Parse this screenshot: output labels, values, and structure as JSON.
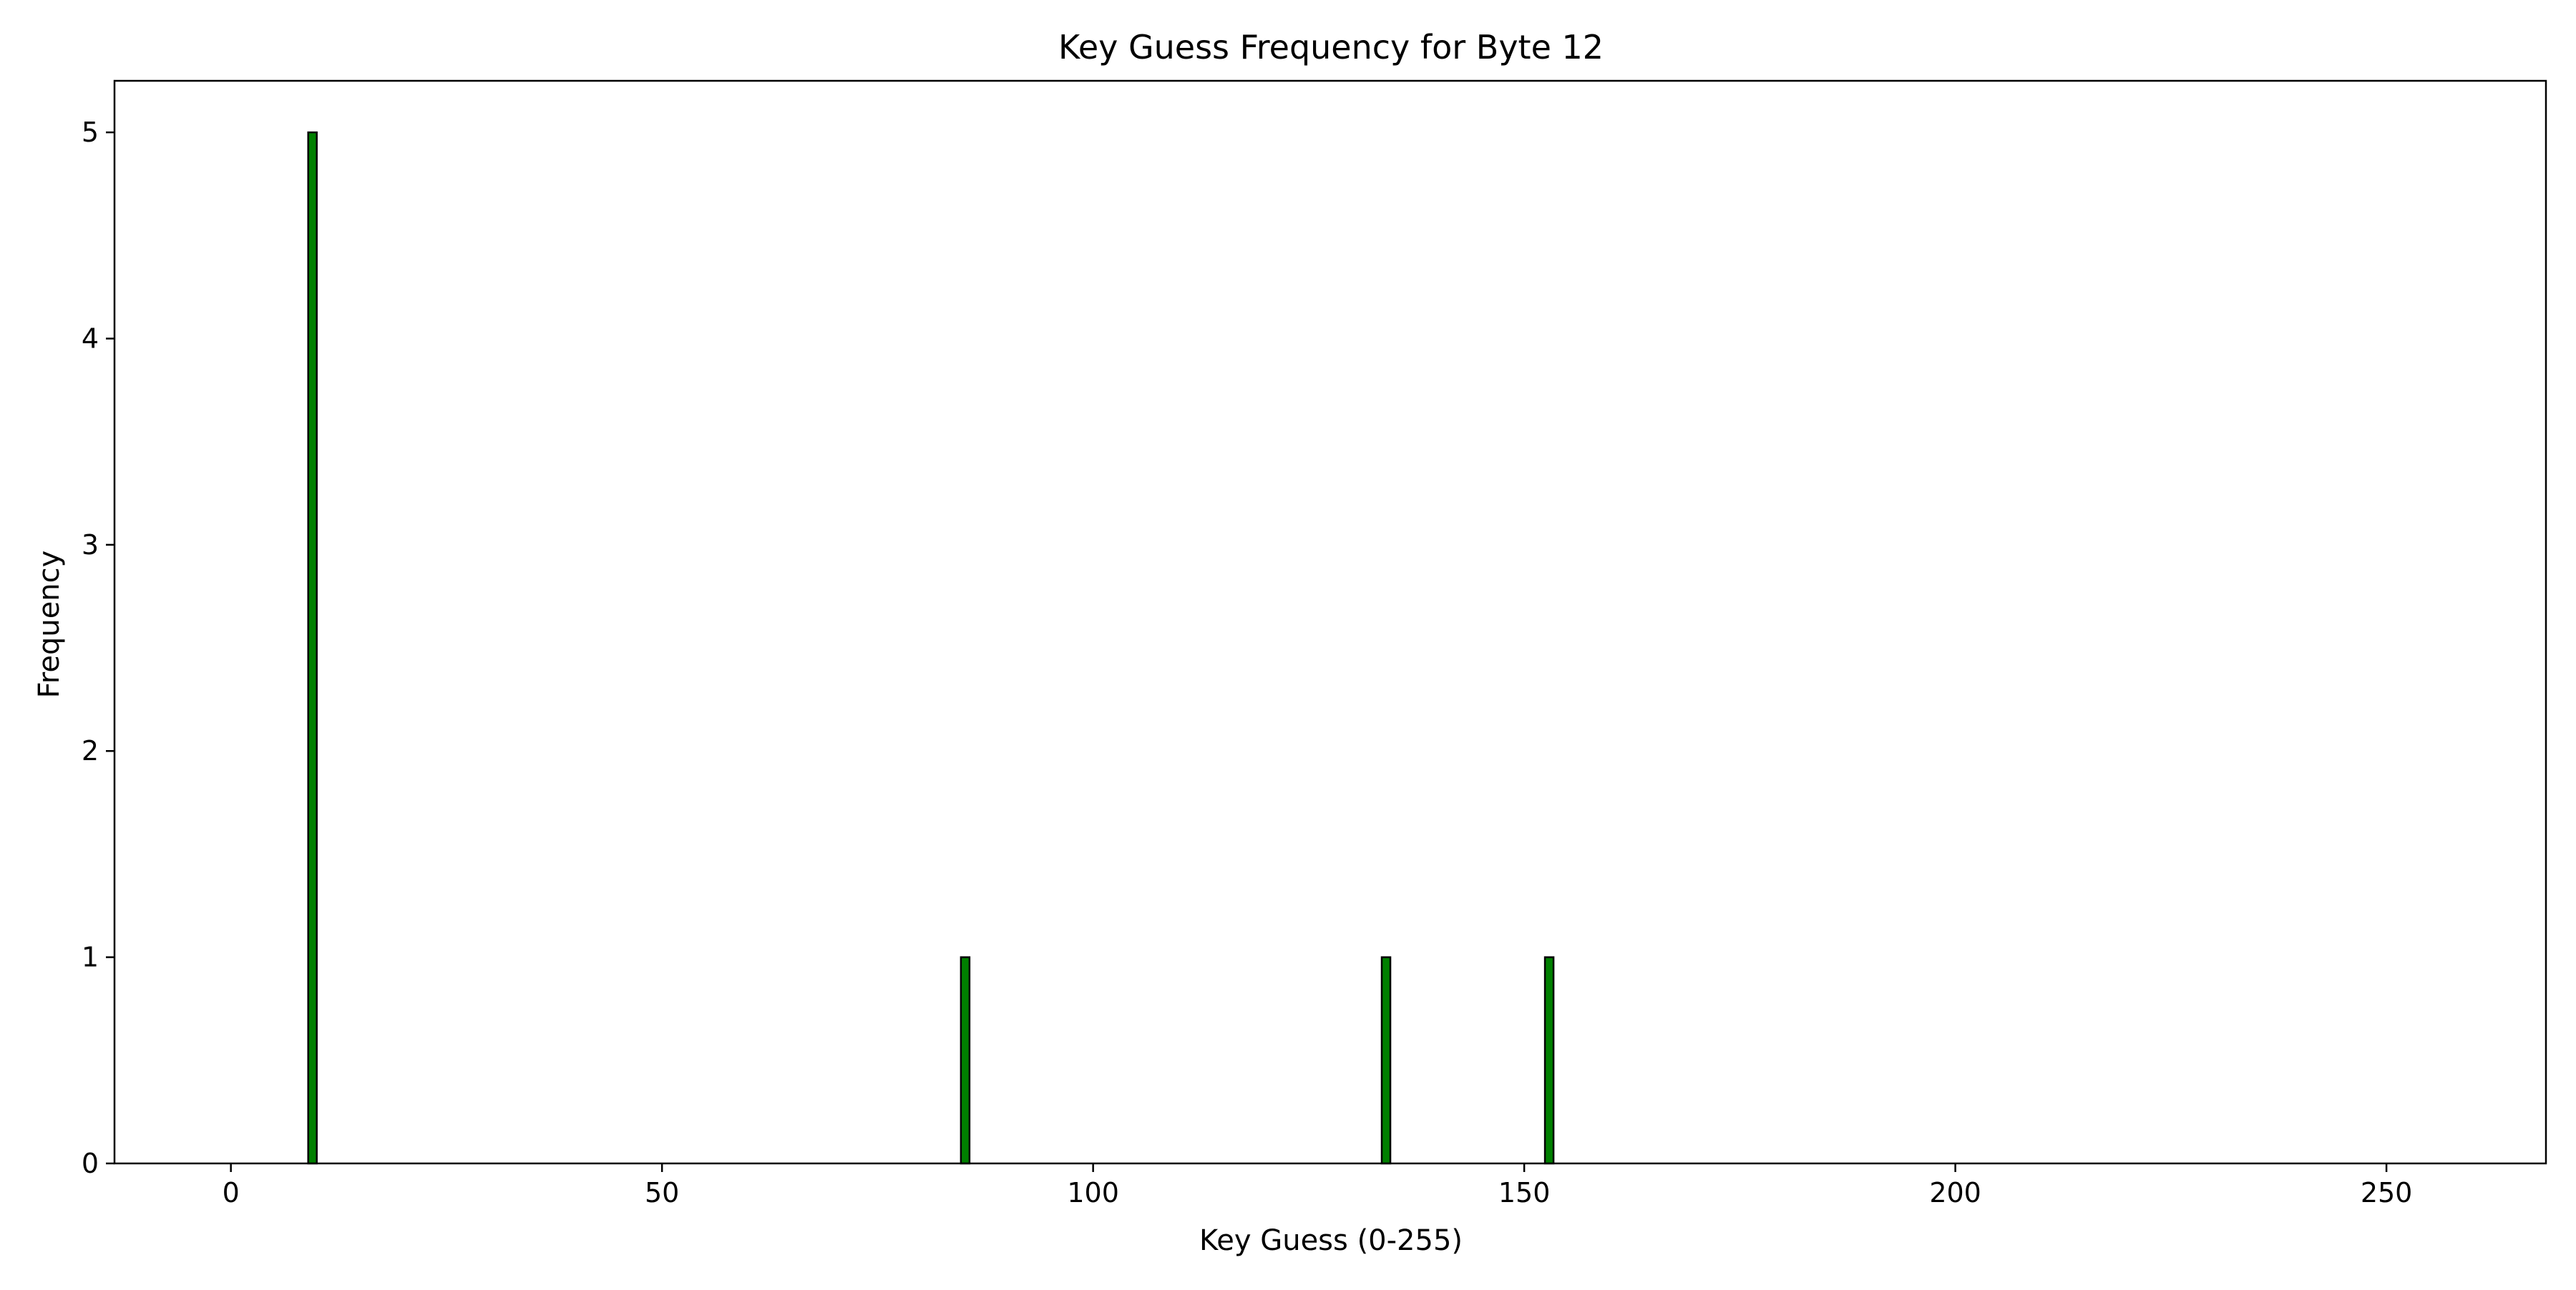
{
  "chart_data": {
    "type": "bar",
    "title": "Key Guess Frequency for Byte 12",
    "xlabel": "Key Guess (0-255)",
    "ylabel": "Frequency",
    "xlim": [
      -13.5,
      268.5
    ],
    "ylim": [
      0,
      5.25
    ],
    "x_ticks": [
      0,
      50,
      100,
      150,
      200,
      250
    ],
    "y_ticks": [
      0,
      1,
      2,
      3,
      4,
      5
    ],
    "bar_color": "#008000",
    "edge_color": "#000000",
    "grid": false,
    "legend": "none",
    "bins": {
      "start": 0,
      "end": 255,
      "count": 256
    },
    "bars": [
      {
        "x": 9,
        "value": 5
      },
      {
        "x": 85,
        "value": 1
      },
      {
        "x": 134,
        "value": 1
      },
      {
        "x": 153,
        "value": 1
      }
    ]
  }
}
